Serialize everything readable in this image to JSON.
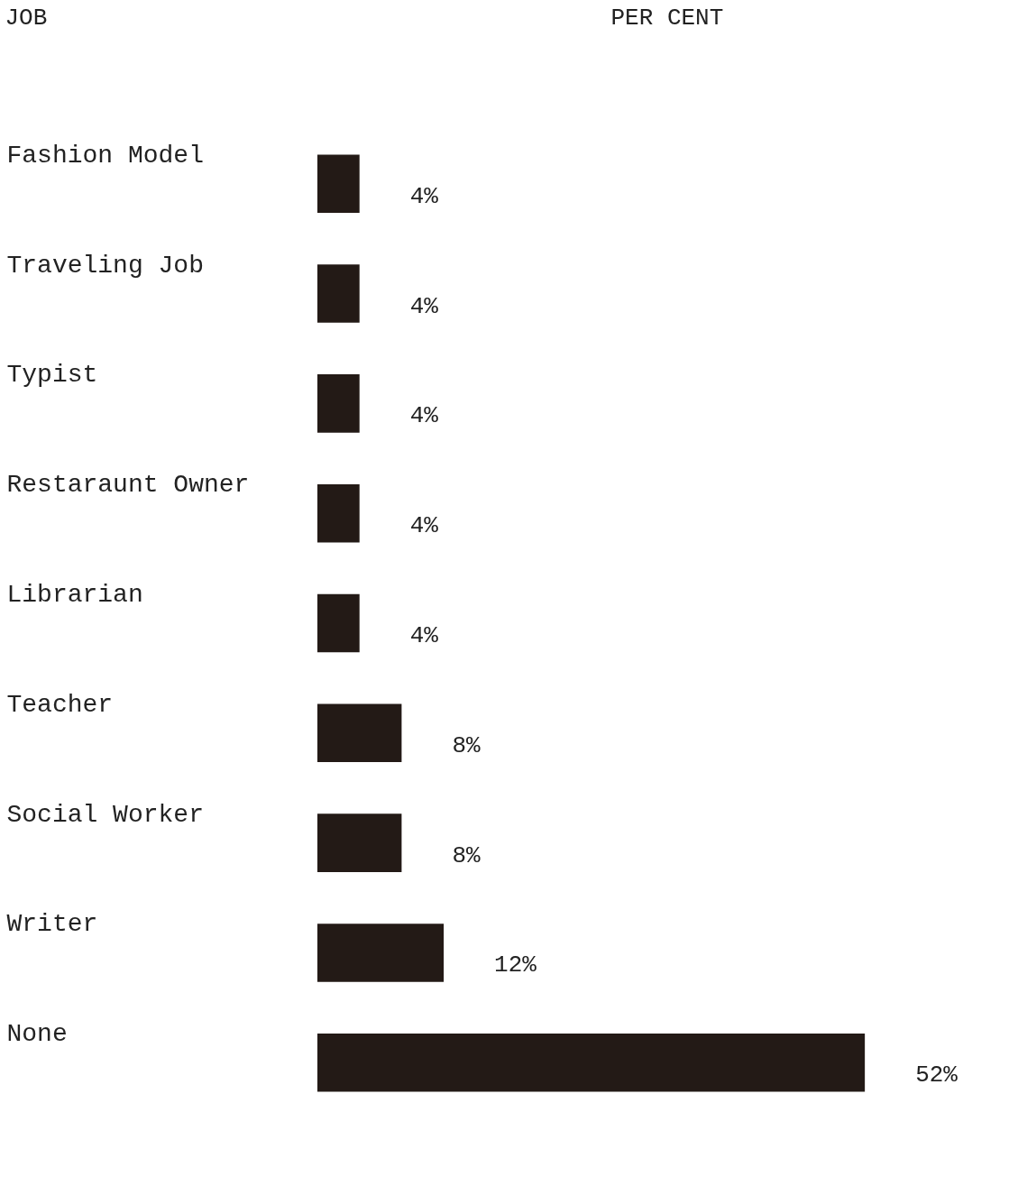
{
  "chart_data": {
    "type": "bar",
    "orientation": "horizontal",
    "xlabel": "PER CENT",
    "ylabel": "JOB",
    "categories": [
      "Fashion Model",
      "Traveling Job",
      "Typist",
      "Restaraunt Owner",
      "Librarian",
      "Teacher",
      "Social Worker",
      "Writer",
      "None"
    ],
    "values": [
      4,
      4,
      4,
      4,
      4,
      8,
      8,
      12,
      52
    ],
    "value_labels": [
      "4%",
      "4%",
      "4%",
      "4%",
      "4%",
      "8%",
      "8%",
      "12%",
      "52%"
    ],
    "color": "#231a16",
    "grid": false,
    "tick_labels": "y"
  }
}
